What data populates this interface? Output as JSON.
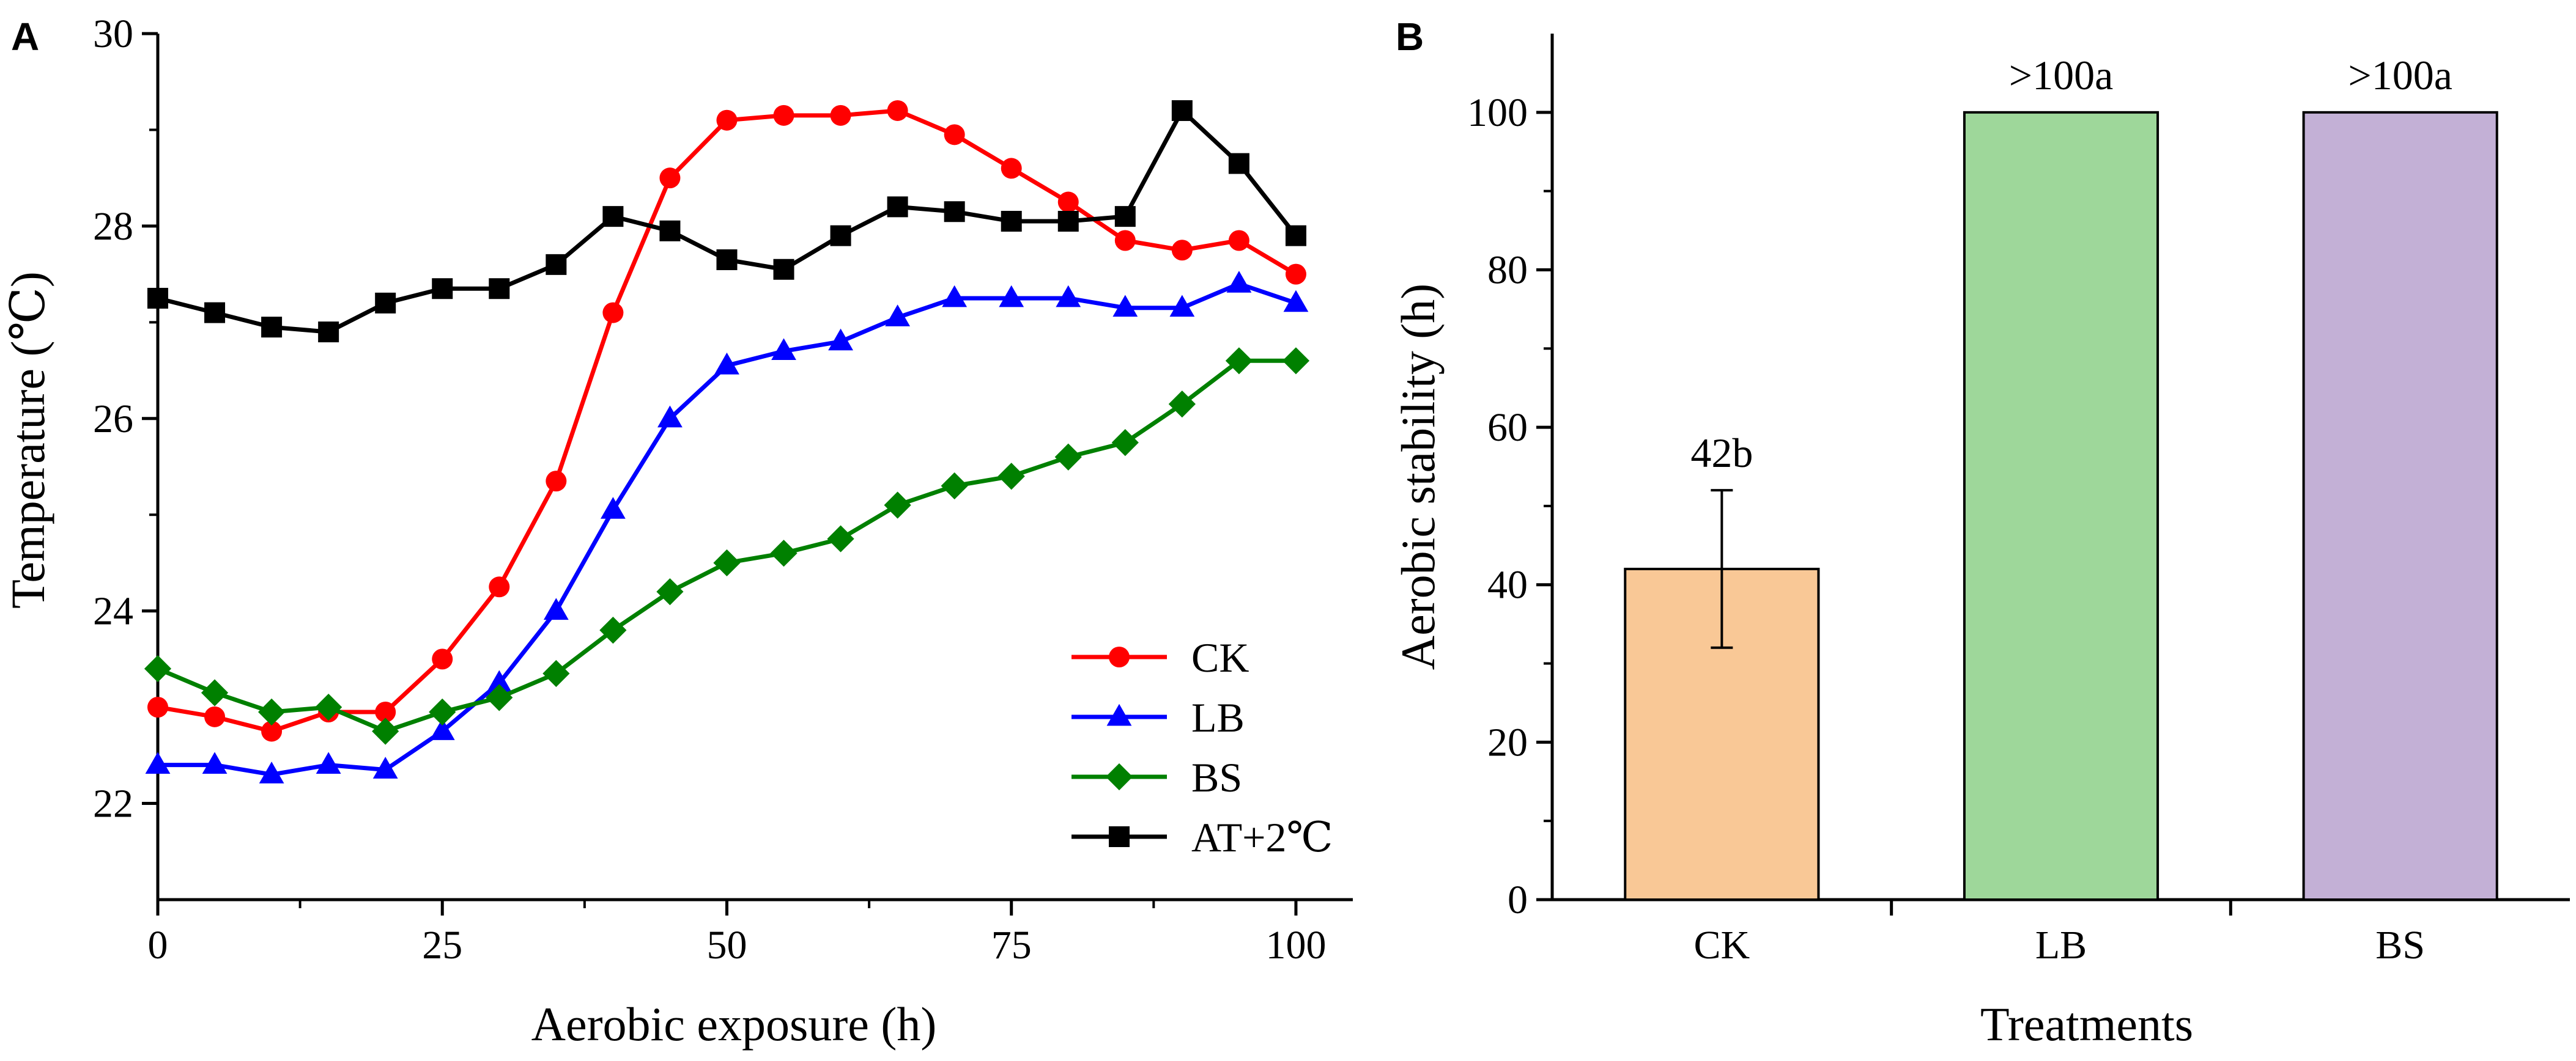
{
  "chart_data": [
    {
      "type": "line",
      "panel_label": "A",
      "xlabel": "Aerobic exposure (h)",
      "ylabel": "Temperature (℃)",
      "xlim": [
        0,
        105
      ],
      "ylim": [
        21,
        30
      ],
      "xticks": [
        0,
        25,
        50,
        75,
        100
      ],
      "yticks": [
        22,
        24,
        26,
        28,
        30
      ],
      "legend_position": "bottom-right",
      "x": [
        0,
        5,
        10,
        15,
        20,
        25,
        30,
        35,
        40,
        45,
        50,
        55,
        60,
        65,
        70,
        75,
        80,
        85,
        90,
        95,
        100
      ],
      "series": [
        {
          "name": "CK",
          "color": "#ff0000",
          "marker": "circle",
          "values": [
            23.0,
            22.9,
            22.75,
            22.95,
            22.95,
            23.5,
            24.25,
            25.35,
            27.1,
            28.5,
            29.1,
            29.15,
            29.15,
            29.2,
            28.95,
            28.6,
            28.25,
            27.85,
            27.75,
            27.85,
            27.5
          ]
        },
        {
          "name": "LB",
          "color": "#0000ff",
          "marker": "triangle",
          "values": [
            22.4,
            22.4,
            22.3,
            22.4,
            22.35,
            22.75,
            23.25,
            24.0,
            25.05,
            26.0,
            26.55,
            26.7,
            26.8,
            27.05,
            27.25,
            27.25,
            27.25,
            27.15,
            27.15,
            27.4,
            27.2
          ]
        },
        {
          "name": "BS",
          "color": "#008000",
          "marker": "diamond",
          "values": [
            23.4,
            23.15,
            22.95,
            23.0,
            22.75,
            22.95,
            23.1,
            23.35,
            23.8,
            24.2,
            24.5,
            24.6,
            24.75,
            25.1,
            25.3,
            25.4,
            25.6,
            25.75,
            26.15,
            26.6,
            26.6
          ]
        },
        {
          "name": "AT+2℃",
          "color": "#000000",
          "marker": "square",
          "values": [
            27.25,
            27.1,
            26.95,
            26.9,
            27.2,
            27.35,
            27.35,
            27.6,
            28.1,
            27.95,
            27.65,
            27.55,
            27.9,
            28.2,
            28.15,
            28.05,
            28.05,
            28.1,
            29.2,
            28.65,
            27.9
          ]
        }
      ]
    },
    {
      "type": "bar",
      "panel_label": "B",
      "xlabel": "Treatments",
      "ylabel": "Aerobic stability (h)",
      "ylim": [
        0,
        110
      ],
      "yticks": [
        0,
        20,
        40,
        60,
        80,
        100
      ],
      "categories": [
        "CK",
        "LB",
        "BS"
      ],
      "values": [
        42,
        100,
        100
      ],
      "errors": [
        10,
        null,
        null
      ],
      "data_labels": [
        "42b",
        ">100a",
        ">100a"
      ],
      "colors": [
        "#f9c896",
        "#9ed79a",
        "#c3b0d6"
      ]
    }
  ]
}
